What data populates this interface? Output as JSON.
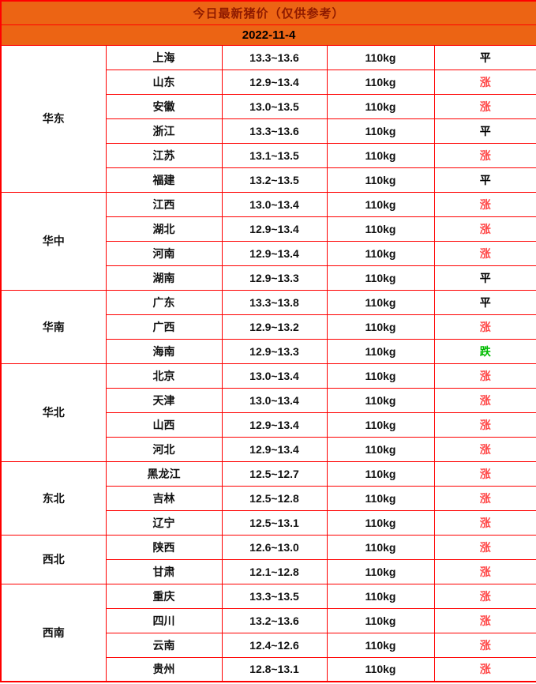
{
  "colors": {
    "header_bg": "#EC6414",
    "title_text": "#8E1A00",
    "border": "#FF0000",
    "up": "#FF4646",
    "down": "#00BB00",
    "flat": "#000000"
  },
  "chart_data": {
    "type": "table",
    "title": "今日最新猪价（仅供参考）",
    "subtitle": "2022-11-4",
    "groups": [
      {
        "region": "华东",
        "rows": [
          {
            "province": "上海",
            "price": "13.3~13.6",
            "weight": "110kg",
            "status": "平",
            "trend": "flat"
          },
          {
            "province": "山东",
            "price": "12.9~13.4",
            "weight": "110kg",
            "status": "涨",
            "trend": "up"
          },
          {
            "province": "安徽",
            "price": "13.0~13.5",
            "weight": "110kg",
            "status": "涨",
            "trend": "up"
          },
          {
            "province": "浙江",
            "price": "13.3~13.6",
            "weight": "110kg",
            "status": "平",
            "trend": "flat"
          },
          {
            "province": "江苏",
            "price": "13.1~13.5",
            "weight": "110kg",
            "status": "涨",
            "trend": "up"
          },
          {
            "province": "福建",
            "price": "13.2~13.5",
            "weight": "110kg",
            "status": "平",
            "trend": "flat"
          }
        ]
      },
      {
        "region": "华中",
        "rows": [
          {
            "province": "江西",
            "price": "13.0~13.4",
            "weight": "110kg",
            "status": "涨",
            "trend": "up"
          },
          {
            "province": "湖北",
            "price": "12.9~13.4",
            "weight": "110kg",
            "status": "涨",
            "trend": "up"
          },
          {
            "province": "河南",
            "price": "12.9~13.4",
            "weight": "110kg",
            "status": "涨",
            "trend": "up"
          },
          {
            "province": "湖南",
            "price": "12.9~13.3",
            "weight": "110kg",
            "status": "平",
            "trend": "flat"
          }
        ]
      },
      {
        "region": "华南",
        "rows": [
          {
            "province": "广东",
            "price": "13.3~13.8",
            "weight": "110kg",
            "status": "平",
            "trend": "flat"
          },
          {
            "province": "广西",
            "price": "12.9~13.2",
            "weight": "110kg",
            "status": "涨",
            "trend": "up"
          },
          {
            "province": "海南",
            "price": "12.9~13.3",
            "weight": "110kg",
            "status": "跌",
            "trend": "down"
          }
        ]
      },
      {
        "region": "华北",
        "rows": [
          {
            "province": "北京",
            "price": "13.0~13.4",
            "weight": "110kg",
            "status": "涨",
            "trend": "up"
          },
          {
            "province": "天津",
            "price": "13.0~13.4",
            "weight": "110kg",
            "status": "涨",
            "trend": "up"
          },
          {
            "province": "山西",
            "price": "12.9~13.4",
            "weight": "110kg",
            "status": "涨",
            "trend": "up"
          },
          {
            "province": "河北",
            "price": "12.9~13.4",
            "weight": "110kg",
            "status": "涨",
            "trend": "up"
          }
        ]
      },
      {
        "region": "东北",
        "rows": [
          {
            "province": "黑龙江",
            "price": "12.5~12.7",
            "weight": "110kg",
            "status": "涨",
            "trend": "up"
          },
          {
            "province": "吉林",
            "price": "12.5~12.8",
            "weight": "110kg",
            "status": "涨",
            "trend": "up"
          },
          {
            "province": "辽宁",
            "price": "12.5~13.1",
            "weight": "110kg",
            "status": "涨",
            "trend": "up"
          }
        ]
      },
      {
        "region": "西北",
        "rows": [
          {
            "province": "陕西",
            "price": "12.6~13.0",
            "weight": "110kg",
            "status": "涨",
            "trend": "up"
          },
          {
            "province": "甘肃",
            "price": "12.1~12.8",
            "weight": "110kg",
            "status": "涨",
            "trend": "up"
          }
        ]
      },
      {
        "region": "西南",
        "rows": [
          {
            "province": "重庆",
            "price": "13.3~13.5",
            "weight": "110kg",
            "status": "涨",
            "trend": "up"
          },
          {
            "province": "四川",
            "price": "13.2~13.6",
            "weight": "110kg",
            "status": "涨",
            "trend": "up"
          },
          {
            "province": "云南",
            "price": "12.4~12.6",
            "weight": "110kg",
            "status": "涨",
            "trend": "up"
          },
          {
            "province": "贵州",
            "price": "12.8~13.1",
            "weight": "110kg",
            "status": "涨",
            "trend": "up"
          }
        ]
      }
    ]
  }
}
